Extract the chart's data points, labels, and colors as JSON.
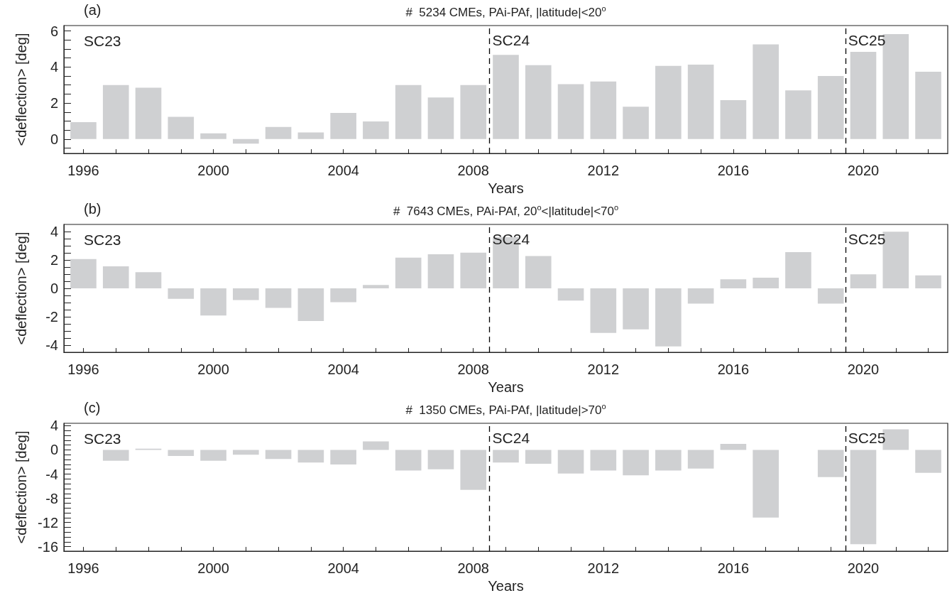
{
  "chart_data": [
    {
      "type": "bar",
      "title": "#  5234 CMEs, PAi-PAf, |latitude|<20$^{o}$",
      "xlabel": "Years",
      "ylabel": "<deflection> [deg]",
      "color": "#cfd0d2",
      "grid": false,
      "annotations": [
        "(a)",
        "SC23"
      ],
      "x": [
        1996,
        1997,
        1998,
        1999,
        2000,
        2001,
        2002,
        2003,
        2004,
        2005,
        2006,
        2007,
        2008,
        2009,
        2010,
        2011,
        2012,
        2013,
        2014,
        2015,
        2016,
        2017,
        2018,
        2019,
        2020,
        2021,
        2022
      ],
      "values": [
        0.94,
        3.0,
        2.85,
        1.23,
        0.32,
        -0.25,
        0.67,
        0.37,
        1.45,
        0.98,
        3.0,
        2.31,
        3.0,
        4.67,
        4.1,
        3.05,
        3.2,
        1.8,
        4.06,
        4.13,
        2.16,
        5.26,
        2.7,
        3.5,
        4.84,
        5.83,
        3.74
      ],
      "xlim": [
        1995.4,
        2022.6
      ],
      "xticks": [
        1996,
        {
          "value": 1997,
          "label": null
        },
        {
          "value": 1998,
          "label": null
        },
        {
          "value": 1999,
          "label": null
        },
        2000,
        {
          "value": 2001,
          "label": null
        },
        {
          "value": 2002,
          "label": null
        },
        {
          "value": 2003,
          "label": null
        },
        2004,
        {
          "value": 2005,
          "label": null
        },
        {
          "value": 2006,
          "label": null
        },
        {
          "value": 2007,
          "label": null
        },
        2008,
        {
          "value": 2009,
          "label": null
        },
        {
          "value": 2010,
          "label": null
        },
        {
          "value": 2011,
          "label": null
        },
        2012,
        {
          "value": 2013,
          "label": null
        },
        {
          "value": 2014,
          "label": null
        },
        {
          "value": 2015,
          "label": null
        },
        2016,
        {
          "value": 2017,
          "label": null
        },
        {
          "value": 2018,
          "label": null
        },
        {
          "value": 2019,
          "label": null
        },
        2020,
        {
          "value": 2021,
          "label": null
        },
        {
          "value": 2022,
          "label": null
        }
      ],
      "ylim": [
        -0.8,
        6.3
      ],
      "yticks": [
        {
          "value": -0.5,
          "label": null
        },
        0,
        {
          "value": 0.5,
          "label": null
        },
        {
          "value": 1,
          "label": null
        },
        {
          "value": 1.5,
          "label": null
        },
        2,
        {
          "value": 2.5,
          "label": null
        },
        {
          "value": 3,
          "label": null
        },
        {
          "value": 3.5,
          "label": null
        },
        4,
        {
          "value": 4.5,
          "label": null
        },
        {
          "value": 5,
          "label": null
        },
        {
          "value": 5.5,
          "label": null
        },
        6
      ],
      "ref_lines": [
        {
          "axis": "x",
          "value": 2008.5,
          "label": "SC24",
          "color": "#000000",
          "line_style": "dashed"
        },
        {
          "axis": "x",
          "value": 2019.45,
          "label": "SC25",
          "color": "#000000",
          "line_style": "dashed"
        }
      ]
    },
    {
      "type": "bar",
      "title": "#  7643 CMEs, PAi-PAf, 20$^{o}$<|latitude|<70$^{o}$",
      "xlabel": "Years",
      "ylabel": "<deflection> [deg]",
      "color": "#cfd0d2",
      "grid": false,
      "legend": false,
      "annotations": [
        "(b)",
        "SC23"
      ],
      "x": [
        1996,
        1997,
        1998,
        1999,
        2000,
        2001,
        2002,
        2003,
        2004,
        2005,
        2006,
        2007,
        2008,
        2009,
        2010,
        2011,
        2012,
        2013,
        2014,
        2015,
        2016,
        2017,
        2018,
        2019,
        2020,
        2021,
        2022
      ],
      "values": [
        2.06,
        1.55,
        1.14,
        -0.73,
        -1.91,
        -0.82,
        -1.37,
        -2.3,
        -0.97,
        0.24,
        2.17,
        2.4,
        2.51,
        3.6,
        2.27,
        -0.86,
        -3.13,
        -2.88,
        -4.08,
        -1.07,
        0.64,
        0.75,
        2.55,
        -1.07,
        0.99,
        3.99,
        0.92
      ],
      "xlim": [
        1995.4,
        2022.6
      ],
      "xticks": [
        1996,
        {
          "value": 1997,
          "label": null
        },
        {
          "value": 1998,
          "label": null
        },
        {
          "value": 1999,
          "label": null
        },
        2000,
        {
          "value": 2001,
          "label": null
        },
        {
          "value": 2002,
          "label": null
        },
        {
          "value": 2003,
          "label": null
        },
        2004,
        {
          "value": 2005,
          "label": null
        },
        {
          "value": 2006,
          "label": null
        },
        {
          "value": 2007,
          "label": null
        },
        2008,
        {
          "value": 2009,
          "label": null
        },
        {
          "value": 2010,
          "label": null
        },
        {
          "value": 2011,
          "label": null
        },
        2012,
        {
          "value": 2013,
          "label": null
        },
        {
          "value": 2014,
          "label": null
        },
        {
          "value": 2015,
          "label": null
        },
        2016,
        {
          "value": 2017,
          "label": null
        },
        {
          "value": 2018,
          "label": null
        },
        {
          "value": 2019,
          "label": null
        },
        2020,
        {
          "value": 2021,
          "label": null
        },
        {
          "value": 2022,
          "label": null
        }
      ],
      "ylim": [
        -4.5,
        4.5
      ],
      "yticks": [
        {
          "value": -4.5,
          "label": null
        },
        -4,
        {
          "value": -3.5,
          "label": null
        },
        {
          "value": -3,
          "label": null
        },
        {
          "value": -2.5,
          "label": null
        },
        -2,
        {
          "value": -1.5,
          "label": null
        },
        {
          "value": -1,
          "label": null
        },
        {
          "value": -0.5,
          "label": null
        },
        0,
        {
          "value": 0.5,
          "label": null
        },
        {
          "value": 1,
          "label": null
        },
        {
          "value": 1.5,
          "label": null
        },
        2,
        {
          "value": 2.5,
          "label": null
        },
        {
          "value": 3,
          "label": null
        },
        {
          "value": 3.5,
          "label": null
        },
        4
      ],
      "ref_lines": [
        {
          "axis": "x",
          "value": 2008.5,
          "label": "SC24",
          "color": "#000000",
          "line_style": "dashed"
        },
        {
          "axis": "x",
          "value": 2019.45,
          "label": "SC25",
          "color": "#000000",
          "line_style": "dashed"
        }
      ]
    },
    {
      "type": "bar",
      "title": "#  1350 CMEs, PAi-PAf, |latitude|>70$^{o}$",
      "xlabel": "Years",
      "ylabel": "<deflection> [deg]",
      "color": "#cfd0d2",
      "grid": false,
      "legend": false,
      "annotations": [
        "(c)",
        "SC23"
      ],
      "x": [
        1996,
        1997,
        1998,
        1999,
        2000,
        2001,
        2002,
        2003,
        2004,
        2005,
        2006,
        2007,
        2008,
        2009,
        2010,
        2011,
        2012,
        2013,
        2014,
        2015,
        2016,
        2017,
        2018,
        2019,
        2020,
        2021,
        2022
      ],
      "values": [
        0,
        -1.8,
        0.2,
        -1.0,
        -1.8,
        -0.8,
        -1.5,
        -2.1,
        -2.4,
        1.4,
        -3.4,
        -3.2,
        -6.6,
        -2.1,
        -2.3,
        -3.9,
        -3.4,
        -4.2,
        -3.4,
        -3.1,
        1.0,
        -11.2,
        0,
        -4.5,
        -15.6,
        3.4,
        -3.8
      ],
      "xlim": [
        1995.4,
        2022.6
      ],
      "xticks": [
        1996,
        {
          "value": 1997,
          "label": null
        },
        {
          "value": 1998,
          "label": null
        },
        {
          "value": 1999,
          "label": null
        },
        2000,
        {
          "value": 2001,
          "label": null
        },
        {
          "value": 2002,
          "label": null
        },
        {
          "value": 2003,
          "label": null
        },
        2004,
        {
          "value": 2005,
          "label": null
        },
        {
          "value": 2006,
          "label": null
        },
        {
          "value": 2007,
          "label": null
        },
        2008,
        {
          "value": 2009,
          "label": null
        },
        {
          "value": 2010,
          "label": null
        },
        {
          "value": 2011,
          "label": null
        },
        2012,
        {
          "value": 2013,
          "label": null
        },
        {
          "value": 2014,
          "label": null
        },
        {
          "value": 2015,
          "label": null
        },
        2016,
        {
          "value": 2017,
          "label": null
        },
        {
          "value": 2018,
          "label": null
        },
        {
          "value": 2019,
          "label": null
        },
        2020,
        {
          "value": 2021,
          "label": null
        },
        {
          "value": 2022,
          "label": null
        }
      ],
      "ylim": [
        -16.75,
        4.4
      ],
      "yticks": [
        -16,
        {
          "value": -15.2,
          "label": null
        },
        {
          "value": -14.4,
          "label": null
        },
        {
          "value": -13.6,
          "label": null
        },
        {
          "value": -12.8,
          "label": null
        },
        -12,
        {
          "value": -11.2,
          "label": null
        },
        {
          "value": -10.4,
          "label": null
        },
        {
          "value": -9.6,
          "label": null
        },
        {
          "value": -8.8,
          "label": null
        },
        -8,
        {
          "value": -7.2,
          "label": null
        },
        {
          "value": -6.4,
          "label": null
        },
        {
          "value": -5.6,
          "label": null
        },
        {
          "value": -4.8,
          "label": null
        },
        -4,
        {
          "value": -3.2,
          "label": null
        },
        {
          "value": -2.4,
          "label": null
        },
        {
          "value": -1.6,
          "label": null
        },
        {
          "value": -0.8,
          "label": null
        },
        0,
        {
          "value": 0.8,
          "label": null
        },
        {
          "value": 1.6,
          "label": null
        },
        {
          "value": 2.4,
          "label": null
        },
        {
          "value": 3.2,
          "label": null
        },
        4
      ],
      "ref_lines": [
        {
          "axis": "x",
          "value": 2008.5,
          "label": "SC24",
          "color": "#000000",
          "line_style": "dashed"
        },
        {
          "axis": "x",
          "value": 2019.45,
          "label": "SC25",
          "color": "#000000",
          "line_style": "dashed"
        }
      ]
    }
  ]
}
